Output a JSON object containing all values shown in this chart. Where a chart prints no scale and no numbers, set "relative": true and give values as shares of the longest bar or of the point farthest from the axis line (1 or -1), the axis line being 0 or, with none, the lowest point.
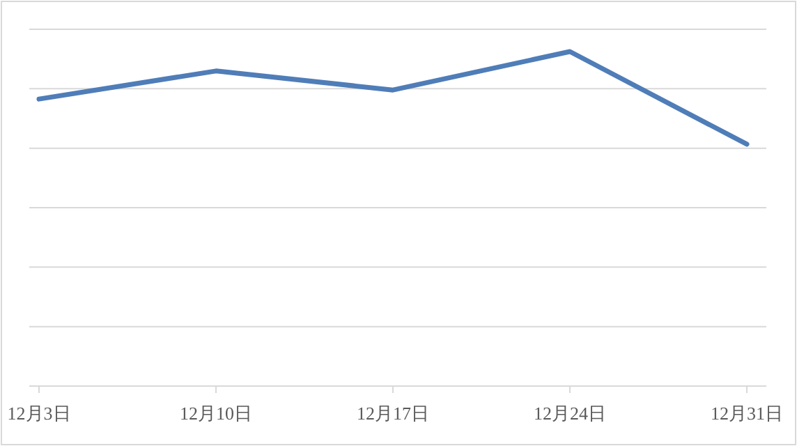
{
  "chart_data": {
    "type": "line",
    "relative": true,
    "categories": [
      "12月3日",
      "12月10日",
      "12月17日",
      "12月24日",
      "12月31日"
    ],
    "series": [
      {
        "color": "#4f7db8",
        "values": [
          0.858,
          0.942,
          0.885,
          1,
          0.723
        ]
      }
    ],
    "grid": "y",
    "marker": "none",
    "line_style": "solid"
  }
}
